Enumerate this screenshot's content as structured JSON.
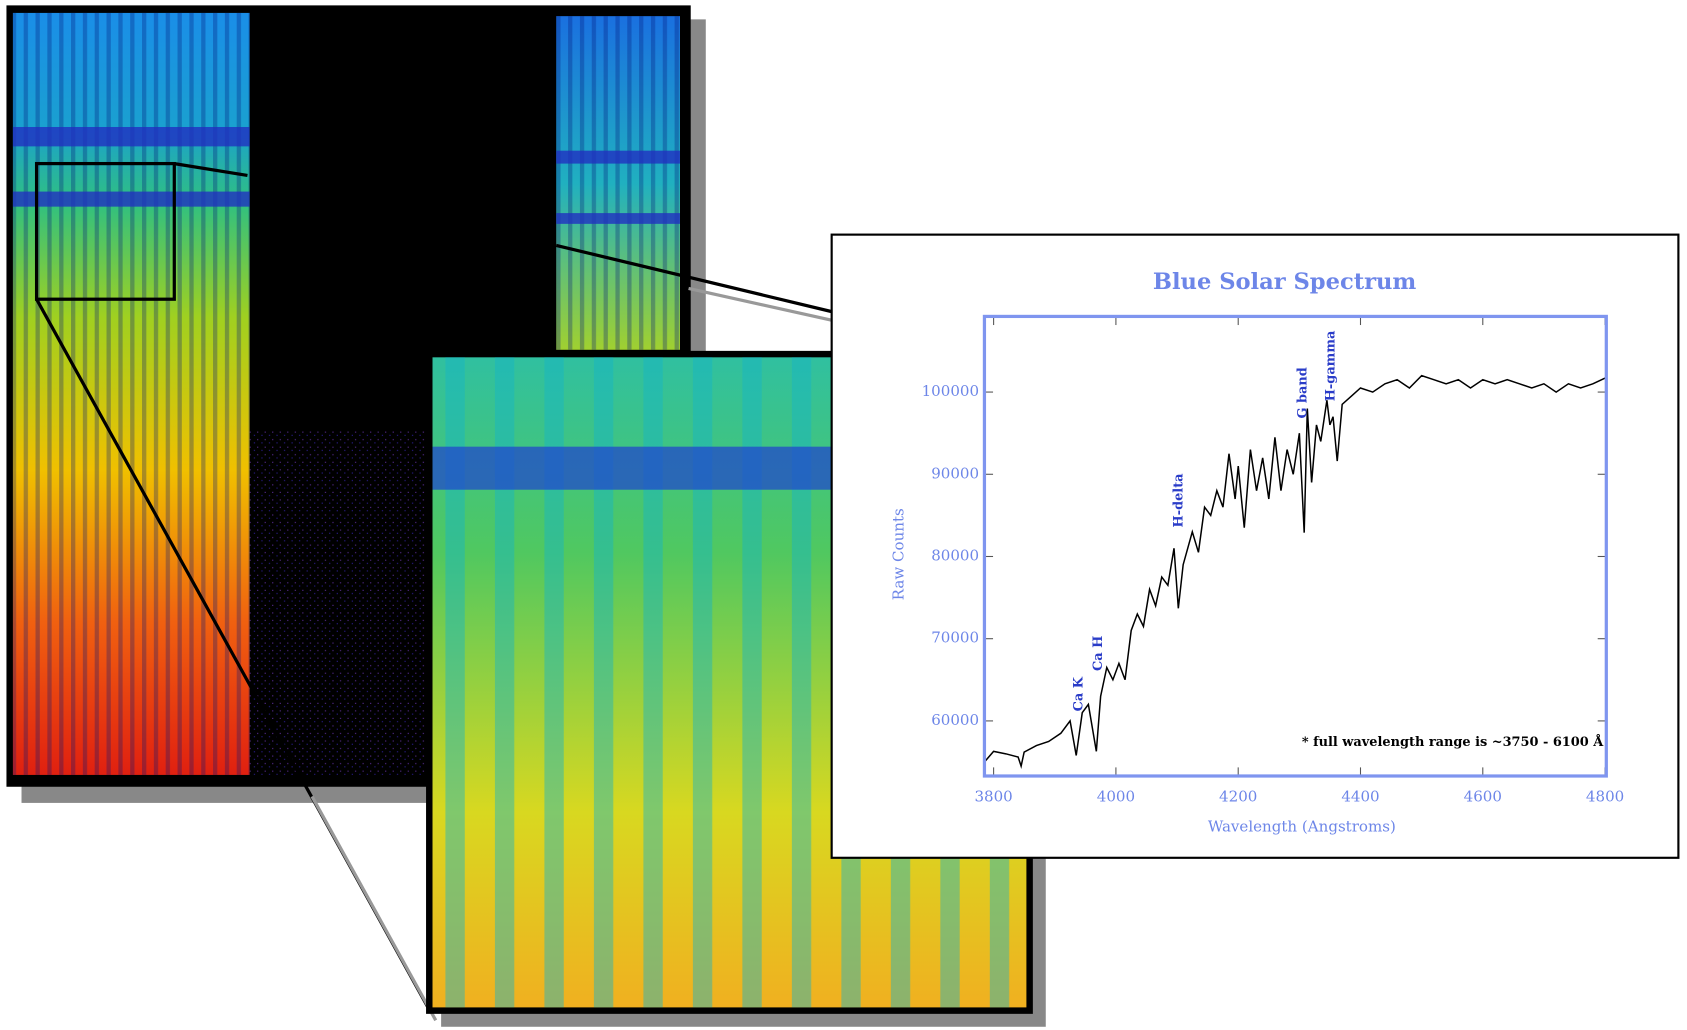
{
  "chart_data": {
    "type": "line",
    "title": "Blue Solar Spectrum",
    "x_label": "Wavelength (Angstroms)",
    "y_label": "Raw Counts",
    "annotations": [
      "Ca K",
      "Ca H",
      "H-delta",
      "G band",
      "H-gamma"
    ],
    "footnote": "* full wavelength range is ~3750 - 6100 Å",
    "color": "#000000",
    "xlim": [
      3785,
      4802
    ],
    "ylim": [
      53300,
      109200
    ],
    "xticks": [
      3800,
      4000,
      4200,
      4400,
      4600,
      4800
    ],
    "yticks": [
      60000,
      70000,
      80000,
      90000,
      100000
    ],
    "x": [
      3785,
      3800,
      3820,
      3840,
      3845,
      3850,
      3870,
      3890,
      3910,
      3925,
      3935,
      3945,
      3955,
      3968,
      3975,
      3985,
      3995,
      4005,
      4015,
      4025,
      4035,
      4045,
      4055,
      4065,
      4075,
      4085,
      4095,
      4102,
      4110,
      4125,
      4135,
      4145,
      4155,
      4165,
      4175,
      4185,
      4195,
      4200,
      4210,
      4220,
      4230,
      4240,
      4250,
      4260,
      4270,
      4280,
      4290,
      4300,
      4308,
      4313,
      4320,
      4328,
      4335,
      4345,
      4350,
      4355,
      4362,
      4370,
      4385,
      4400,
      4420,
      4440,
      4460,
      4480,
      4500,
      4520,
      4540,
      4560,
      4580,
      4600,
      4620,
      4640,
      4660,
      4680,
      4700,
      4720,
      4740,
      4760,
      4780,
      4800
    ],
    "values": [
      55000,
      56300,
      56000,
      55600,
      54500,
      56200,
      57000,
      57500,
      58500,
      60000,
      55800,
      61000,
      62000,
      56300,
      63000,
      66500,
      65000,
      67000,
      65000,
      71000,
      73000,
      71500,
      76000,
      74000,
      77500,
      76500,
      81000,
      73700,
      79000,
      83000,
      80500,
      86000,
      85000,
      88000,
      86000,
      92500,
      87000,
      91000,
      83500,
      93000,
      88000,
      92000,
      87000,
      94500,
      88000,
      93000,
      90000,
      95000,
      82900,
      98000,
      89000,
      96000,
      94000,
      99000,
      96000,
      97000,
      91600,
      98500,
      99500,
      100500,
      100000,
      101000,
      101500,
      100500,
      102000,
      101500,
      101000,
      101500,
      100500,
      101500,
      101000,
      101500,
      101000,
      100500,
      101000,
      100000,
      101000,
      100500,
      101000,
      101700
    ]
  }
}
